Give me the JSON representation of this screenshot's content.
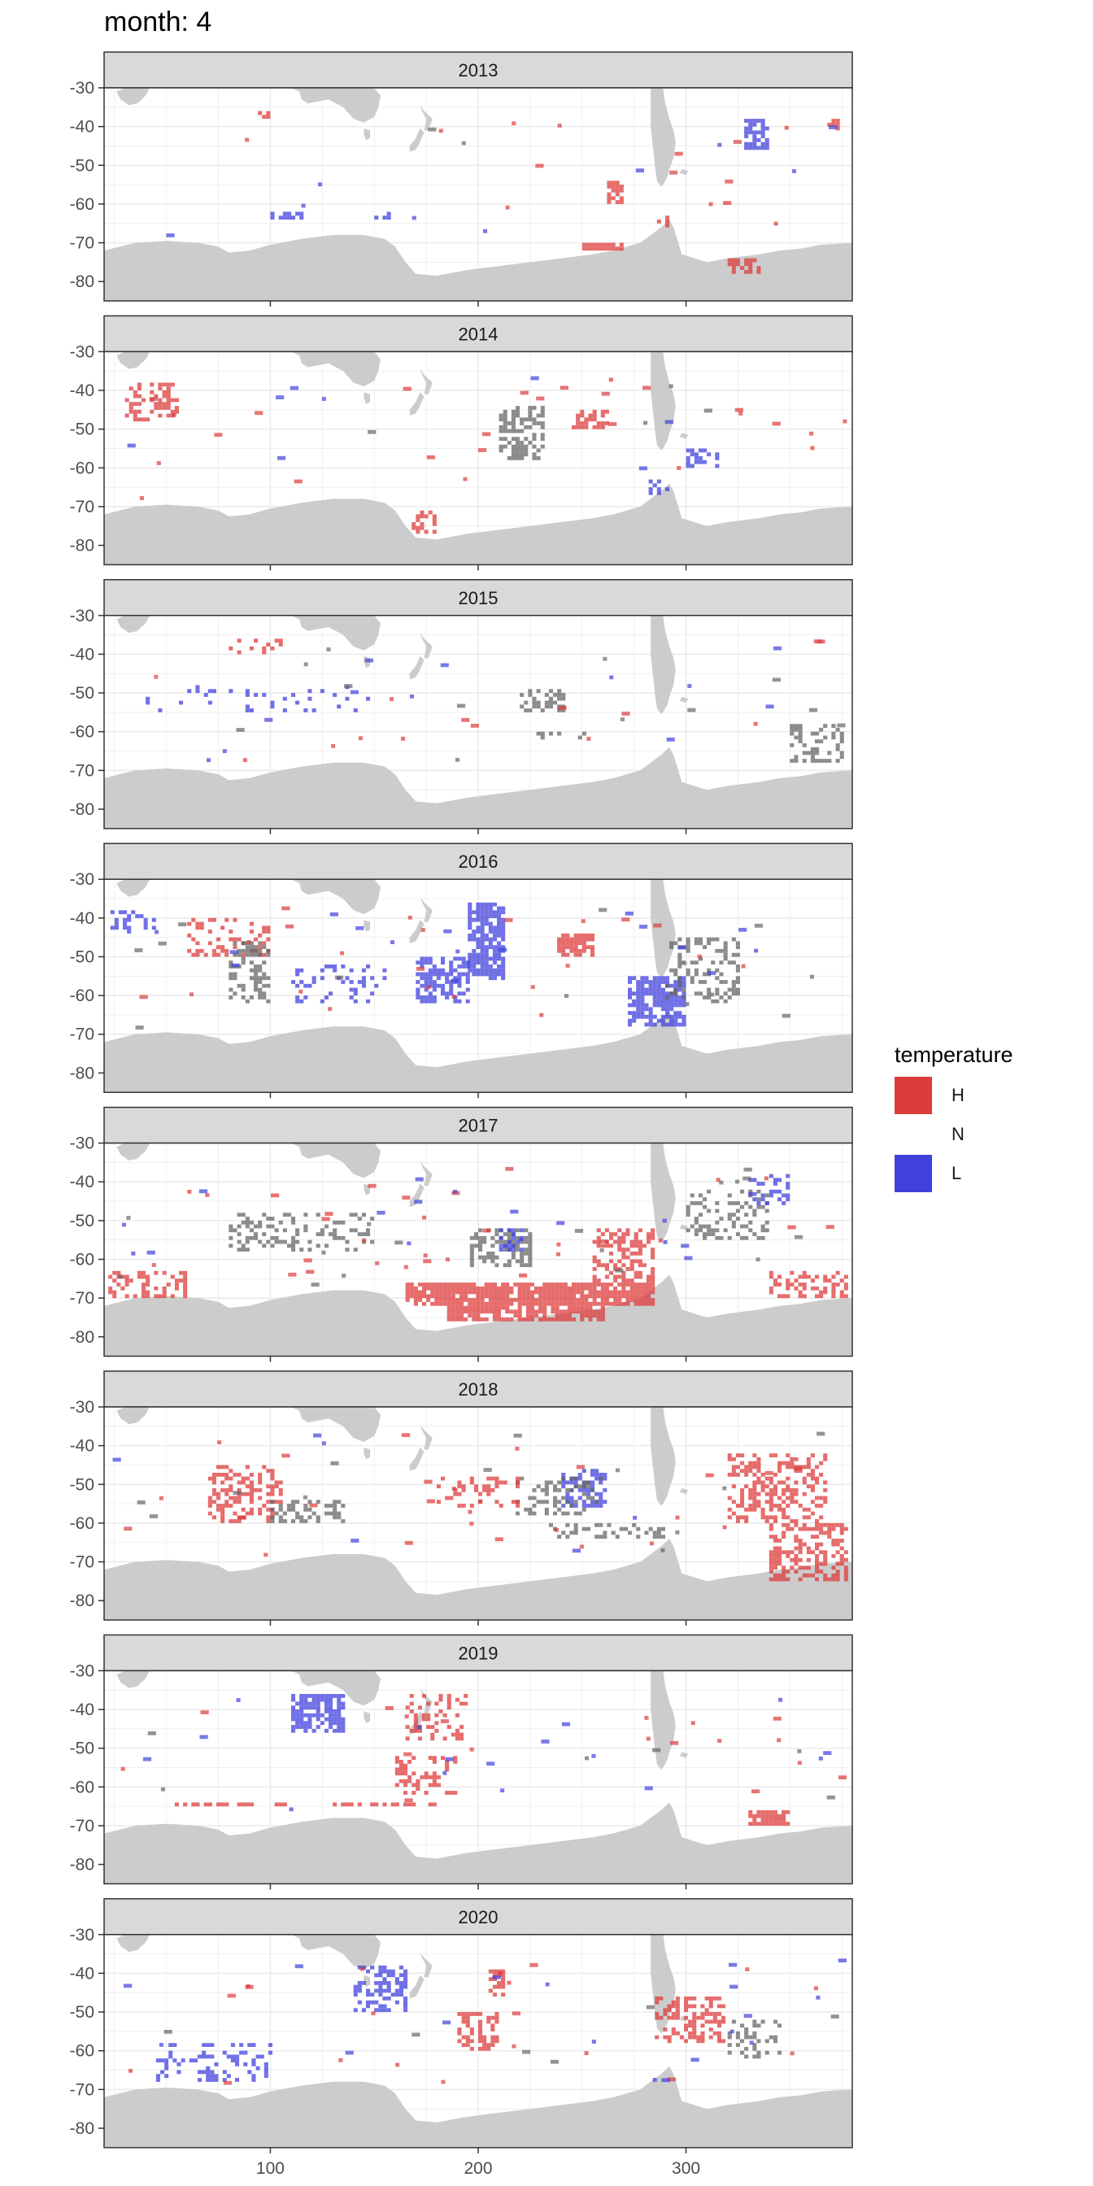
{
  "title": "month: 4",
  "legend": {
    "title": "temperature",
    "items": [
      {
        "label": "H",
        "color": "#dd3b3b"
      },
      {
        "label": "N",
        "color": "#ffffff"
      },
      {
        "label": "L",
        "color": "#4040dd"
      }
    ]
  },
  "colors": {
    "land": "#cccccc",
    "strip": "#d9d9d9",
    "grid": "#ebebeb",
    "H": "#dd3b3b",
    "L": "#4040dd",
    "N": "#666666"
  },
  "chart_data": {
    "type": "heatmap",
    "facet_by": "year",
    "xlim": [
      20,
      380
    ],
    "ylim": [
      -85,
      -30
    ],
    "x_ticks": [
      100,
      200,
      300
    ],
    "y_ticks": [
      -30,
      -40,
      -50,
      -60,
      -70,
      -80
    ],
    "x_tick_labels": [
      "100",
      "200",
      "300"
    ],
    "y_tick_labels": [
      "-30",
      "-40",
      "-50",
      "-60",
      "-70",
      "-80"
    ],
    "grid": true,
    "legend_position": "right",
    "categories": [
      "H",
      "N",
      "L"
    ],
    "cell_size": {
      "lon": 2,
      "lat": 1
    },
    "facets": [
      {
        "label": "2013",
        "regions": [
          {
            "cat": "H",
            "lon": [
              90,
              100
            ],
            "lat": [
              -38,
              -36
            ],
            "density": 0.4
          },
          {
            "cat": "H",
            "lon": [
              262,
              270
            ],
            "lat": [
              -60,
              -54
            ],
            "density": 0.7
          },
          {
            "cat": "H",
            "lon": [
              250,
              270
            ],
            "lat": [
              -72,
              -70
            ],
            "density": 0.9
          },
          {
            "cat": "H",
            "lon": [
              320,
              335
            ],
            "lat": [
              -78,
              -74
            ],
            "density": 0.7
          },
          {
            "cat": "H",
            "lon": [
              286,
              292
            ],
            "lat": [
              -66,
              -63
            ],
            "density": 0.5
          },
          {
            "cat": "H",
            "lon": [
              368,
              376
            ],
            "lat": [
              -41,
              -38
            ],
            "density": 0.5
          },
          {
            "cat": "L",
            "lon": [
              328,
              340
            ],
            "lat": [
              -46,
              -38
            ],
            "density": 0.6
          },
          {
            "cat": "L",
            "lon": [
              100,
              118
            ],
            "lat": [
              -64,
              -62
            ],
            "density": 0.5
          },
          {
            "cat": "L",
            "lon": [
              150,
              168
            ],
            "lat": [
              -64,
              -62
            ],
            "density": 0.5
          }
        ],
        "scatter": {
          "H": 14,
          "L": 9,
          "N": 2
        }
      },
      {
        "label": "2014",
        "regions": [
          {
            "cat": "H",
            "lon": [
              30,
              55
            ],
            "lat": [
              -48,
              -38
            ],
            "density": 0.5
          },
          {
            "cat": "H",
            "lon": [
              245,
              262
            ],
            "lat": [
              -50,
              -45
            ],
            "density": 0.5
          },
          {
            "cat": "H",
            "lon": [
              168,
              180
            ],
            "lat": [
              -77,
              -71
            ],
            "density": 0.4
          },
          {
            "cat": "N",
            "lon": [
              210,
              232
            ],
            "lat": [
              -58,
              -44
            ],
            "density": 0.45
          },
          {
            "cat": "L",
            "lon": [
              300,
              316
            ],
            "lat": [
              -60,
              -55
            ],
            "density": 0.4
          },
          {
            "cat": "L",
            "lon": [
              282,
              292
            ],
            "lat": [
              -67,
              -63
            ],
            "density": 0.4
          }
        ],
        "scatter": {
          "H": 26,
          "L": 8,
          "N": 4
        }
      },
      {
        "label": "2015",
        "regions": [
          {
            "cat": "N",
            "lon": [
              220,
              242
            ],
            "lat": [
              -55,
              -49
            ],
            "density": 0.55
          },
          {
            "cat": "N",
            "lon": [
              228,
              255
            ],
            "lat": [
              -62,
              -60
            ],
            "density": 0.4
          },
          {
            "cat": "N",
            "lon": [
              350,
              376
            ],
            "lat": [
              -68,
              -58
            ],
            "density": 0.35
          },
          {
            "cat": "L",
            "lon": [
              40,
              150
            ],
            "lat": [
              -55,
              -48
            ],
            "density": 0.12
          },
          {
            "cat": "H",
            "lon": [
              80,
              110
            ],
            "lat": [
              -40,
              -36
            ],
            "density": 0.2
          }
        ],
        "scatter": {
          "H": 14,
          "L": 12,
          "N": 12
        }
      },
      {
        "label": "2016",
        "regions": [
          {
            "cat": "L",
            "lon": [
              195,
              213
            ],
            "lat": [
              -56,
              -36
            ],
            "density": 0.75
          },
          {
            "cat": "L",
            "lon": [
              170,
              196
            ],
            "lat": [
              -62,
              -50
            ],
            "density": 0.55
          },
          {
            "cat": "L",
            "lon": [
              272,
              300
            ],
            "lat": [
              -68,
              -55
            ],
            "density": 0.65
          },
          {
            "cat": "H",
            "lon": [
              238,
              256
            ],
            "lat": [
              -50,
              -44
            ],
            "density": 0.7
          },
          {
            "cat": "H",
            "lon": [
              60,
              100
            ],
            "lat": [
              -50,
              -40
            ],
            "density": 0.3
          },
          {
            "cat": "N",
            "lon": [
              80,
              100
            ],
            "lat": [
              -62,
              -45
            ],
            "density": 0.35
          },
          {
            "cat": "N",
            "lon": [
              290,
              325
            ],
            "lat": [
              -62,
              -45
            ],
            "density": 0.3
          },
          {
            "cat": "L",
            "lon": [
              110,
              155
            ],
            "lat": [
              -62,
              -52
            ],
            "density": 0.25
          },
          {
            "cat": "L",
            "lon": [
              23,
              45
            ],
            "lat": [
              -44,
              -38
            ],
            "density": 0.3
          }
        ],
        "scatter": {
          "H": 22,
          "L": 16,
          "N": 12
        }
      },
      {
        "label": "2017",
        "regions": [
          {
            "cat": "H",
            "lon": [
              165,
              285
            ],
            "lat": [
              -72,
              -66
            ],
            "density": 0.85
          },
          {
            "cat": "H",
            "lon": [
              185,
              260
            ],
            "lat": [
              -76,
              -72
            ],
            "density": 0.8
          },
          {
            "cat": "H",
            "lon": [
              255,
              285
            ],
            "lat": [
              -66,
              -52
            ],
            "density": 0.45
          },
          {
            "cat": "H",
            "lon": [
              22,
              62
            ],
            "lat": [
              -70,
              -63
            ],
            "density": 0.4
          },
          {
            "cat": "H",
            "lon": [
              340,
              378
            ],
            "lat": [
              -70,
              -63
            ],
            "density": 0.45
          },
          {
            "cat": "N",
            "lon": [
              80,
              150
            ],
            "lat": [
              -58,
              -48
            ],
            "density": 0.25
          },
          {
            "cat": "N",
            "lon": [
              196,
              226
            ],
            "lat": [
              -62,
              -52
            ],
            "density": 0.5
          },
          {
            "cat": "N",
            "lon": [
              300,
              340
            ],
            "lat": [
              -55,
              -42
            ],
            "density": 0.3
          },
          {
            "cat": "L",
            "lon": [
              210,
              222
            ],
            "lat": [
              -58,
              -52
            ],
            "density": 0.5
          },
          {
            "cat": "L",
            "lon": [
              330,
              350
            ],
            "lat": [
              -46,
              -38
            ],
            "density": 0.3
          }
        ],
        "scatter": {
          "H": 30,
          "L": 18,
          "N": 16
        }
      },
      {
        "label": "2018",
        "regions": [
          {
            "cat": "H",
            "lon": [
              320,
              368
            ],
            "lat": [
              -60,
              -42
            ],
            "density": 0.4
          },
          {
            "cat": "H",
            "lon": [
              340,
              378
            ],
            "lat": [
              -75,
              -60
            ],
            "density": 0.45
          },
          {
            "cat": "H",
            "lon": [
              70,
              105
            ],
            "lat": [
              -60,
              -45
            ],
            "density": 0.35
          },
          {
            "cat": "L",
            "lon": [
              240,
              262
            ],
            "lat": [
              -56,
              -46
            ],
            "density": 0.6
          },
          {
            "cat": "N",
            "lon": [
              100,
              135
            ],
            "lat": [
              -60,
              -54
            ],
            "density": 0.4
          },
          {
            "cat": "N",
            "lon": [
              218,
              260
            ],
            "lat": [
              -58,
              -48
            ],
            "density": 0.3
          },
          {
            "cat": "N",
            "lon": [
              230,
              290
            ],
            "lat": [
              -64,
              -60
            ],
            "density": 0.35
          },
          {
            "cat": "H",
            "lon": [
              180,
              220
            ],
            "lat": [
              -56,
              -48
            ],
            "density": 0.3
          }
        ],
        "scatter": {
          "H": 26,
          "L": 6,
          "N": 12
        }
      },
      {
        "label": "2019",
        "regions": [
          {
            "cat": "L",
            "lon": [
              110,
              135
            ],
            "lat": [
              -46,
              -36
            ],
            "density": 0.75
          },
          {
            "cat": "H",
            "lon": [
              330,
              350
            ],
            "lat": [
              -70,
              -66
            ],
            "density": 0.85
          },
          {
            "cat": "H",
            "lon": [
              50,
              110
            ],
            "lat": [
              -65,
              -64
            ],
            "density": 0.5
          },
          {
            "cat": "H",
            "lon": [
              130,
              180
            ],
            "lat": [
              -65,
              -64
            ],
            "density": 0.45
          },
          {
            "cat": "H",
            "lon": [
              160,
              190
            ],
            "lat": [
              -62,
              -52
            ],
            "density": 0.3
          },
          {
            "cat": "H",
            "lon": [
              165,
              195
            ],
            "lat": [
              -48,
              -36
            ],
            "density": 0.3
          }
        ],
        "scatter": {
          "H": 18,
          "L": 16,
          "N": 6
        }
      },
      {
        "label": "2020",
        "regions": [
          {
            "cat": "L",
            "lon": [
              140,
              165
            ],
            "lat": [
              -50,
              -38
            ],
            "density": 0.55
          },
          {
            "cat": "L",
            "lon": [
              45,
              100
            ],
            "lat": [
              -68,
              -58
            ],
            "density": 0.25
          },
          {
            "cat": "H",
            "lon": [
              190,
              210
            ],
            "lat": [
              -60,
              -50
            ],
            "density": 0.5
          },
          {
            "cat": "H",
            "lon": [
              205,
              212
            ],
            "lat": [
              -46,
              -38
            ],
            "density": 0.45
          },
          {
            "cat": "H",
            "lon": [
              285,
              318
            ],
            "lat": [
              -58,
              -46
            ],
            "density": 0.45
          },
          {
            "cat": "N",
            "lon": [
              320,
              345
            ],
            "lat": [
              -62,
              -52
            ],
            "density": 0.3
          }
        ],
        "scatter": {
          "H": 20,
          "L": 18,
          "N": 6
        }
      }
    ]
  }
}
